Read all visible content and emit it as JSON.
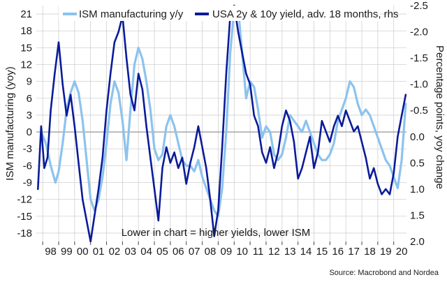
{
  "chart_data": {
    "type": "line",
    "grid": true,
    "legend_position": "top",
    "annotation": "Lower in chart = higher yields, lower ISM",
    "source": "Source: Macrobond and Nordea",
    "colors": {
      "ism": "#8cc3ee",
      "yield": "#0a1b9a",
      "zero": "#8a8a8a",
      "grid": "#d0d0d0"
    },
    "x": {
      "ticks": [
        "98",
        "99",
        "00",
        "01",
        "02",
        "03",
        "04",
        "05",
        "06",
        "07",
        "08",
        "09",
        "10",
        "11",
        "12",
        "13",
        "14",
        "15",
        "16",
        "17",
        "18",
        "19",
        "20"
      ],
      "range": [
        1997.6,
        2020.8
      ]
    },
    "y_left": {
      "label": "ISM manufacturing (yoy)",
      "range": [
        -19.5,
        22.5
      ],
      "ticks": [
        21,
        18,
        15,
        12,
        9,
        6,
        3,
        0,
        -3,
        -6,
        -9,
        -12,
        -15,
        -18
      ]
    },
    "y_right": {
      "label": "Percentage points, yoy change",
      "inverted": true,
      "range": [
        2.0,
        -2.5
      ],
      "ticks": [
        "-2.5",
        "-2.0",
        "-1.5",
        "-1.0",
        "-0.5",
        "0.0",
        "0.5",
        "1.0",
        "1.5",
        "2.0"
      ]
    },
    "series": [
      {
        "name": "ISM manufacturing y/y",
        "axis": "left",
        "x": [
          1997.9,
          1998.2,
          1998.5,
          1998.8,
          1999.0,
          1999.25,
          1999.5,
          1999.75,
          2000.0,
          2000.25,
          2000.5,
          2000.75,
          2001.0,
          2001.25,
          2001.5,
          2001.75,
          2002.0,
          2002.25,
          2002.5,
          2002.75,
          2003.0,
          2003.25,
          2003.5,
          2003.75,
          2004.0,
          2004.25,
          2004.5,
          2004.75,
          2005.0,
          2005.25,
          2005.5,
          2005.75,
          2006.0,
          2006.25,
          2006.5,
          2006.75,
          2007.0,
          2007.25,
          2007.5,
          2007.75,
          2008.0,
          2008.25,
          2008.5,
          2008.75,
          2009.0,
          2009.25,
          2009.5,
          2009.75,
          2010.0,
          2010.25,
          2010.5,
          2010.75,
          2011.0,
          2011.25,
          2011.5,
          2011.75,
          2012.0,
          2012.25,
          2012.5,
          2012.75,
          2013.0,
          2013.25,
          2013.5,
          2013.75,
          2014.0,
          2014.25,
          2014.5,
          2014.75,
          2015.0,
          2015.25,
          2015.5,
          2015.75,
          2016.0,
          2016.25,
          2016.5,
          2016.75,
          2017.0,
          2017.25,
          2017.5,
          2017.75,
          2018.0,
          2018.25,
          2018.5,
          2018.75,
          2019.0,
          2019.25,
          2019.5,
          2019.75,
          2020.0,
          2020.25,
          2020.5,
          2020.75
        ],
        "values": [
          0,
          -2,
          -6,
          -9,
          -7,
          -2,
          4,
          7,
          9,
          7,
          2,
          -5,
          -12,
          -14,
          -12,
          -8,
          -2,
          5,
          9,
          7,
          2,
          -5,
          4,
          12,
          15,
          13,
          9,
          4,
          -3,
          -5,
          -4,
          1,
          3,
          1,
          -2,
          -5,
          -6,
          -6,
          -7,
          -5,
          -8,
          -10,
          -12,
          -14,
          -15,
          -10,
          0,
          14,
          22,
          22,
          14,
          6,
          9,
          8,
          4,
          -1,
          1,
          0,
          -4,
          -5,
          -4,
          -1,
          3,
          2,
          1,
          0,
          2,
          0,
          -2,
          -4,
          -5,
          -5,
          -4,
          -2,
          2,
          4,
          6,
          9,
          8,
          5,
          3,
          4,
          3,
          1,
          -1,
          -3,
          -5,
          -6,
          -8,
          -10,
          -5,
          5
        ]
      },
      {
        "name": "USA 2y & 10y yield, adv. 18 months, rhs",
        "axis": "right",
        "x": [
          1997.7,
          1997.9,
          1998.1,
          1998.3,
          1998.5,
          1998.75,
          1999.0,
          1999.25,
          1999.5,
          1999.75,
          2000.0,
          2000.25,
          2000.5,
          2000.75,
          2001.0,
          2001.25,
          2001.5,
          2001.75,
          2002.0,
          2002.25,
          2002.5,
          2002.75,
          2003.0,
          2003.25,
          2003.5,
          2003.75,
          2004.0,
          2004.25,
          2004.5,
          2004.75,
          2005.0,
          2005.25,
          2005.5,
          2005.75,
          2006.0,
          2006.25,
          2006.5,
          2006.75,
          2007.0,
          2007.25,
          2007.5,
          2007.75,
          2008.0,
          2008.25,
          2008.5,
          2008.75,
          2009.0,
          2009.25,
          2009.5,
          2009.75,
          2010.0,
          2010.25,
          2010.5,
          2010.75,
          2011.0,
          2011.25,
          2011.5,
          2011.75,
          2012.0,
          2012.25,
          2012.5,
          2012.75,
          2013.0,
          2013.25,
          2013.5,
          2013.75,
          2014.0,
          2014.25,
          2014.5,
          2014.75,
          2015.0,
          2015.25,
          2015.5,
          2015.75,
          2016.0,
          2016.25,
          2016.5,
          2016.75,
          2017.0,
          2017.25,
          2017.5,
          2017.75,
          2018.0,
          2018.25,
          2018.5,
          2018.75,
          2019.0,
          2019.25,
          2019.5,
          2019.75,
          2020.0,
          2020.25,
          2020.5,
          2020.75
        ],
        "values": [
          1.0,
          -0.2,
          0.6,
          0.4,
          -0.5,
          -1.2,
          -1.8,
          -1.0,
          -0.4,
          -0.8,
          -0.2,
          0.5,
          1.2,
          1.6,
          2.0,
          1.5,
          1.0,
          0.4,
          -0.5,
          -1.2,
          -1.8,
          -2.0,
          -2.3,
          -1.5,
          -0.8,
          -0.5,
          -1.2,
          -0.9,
          -0.2,
          0.4,
          1.0,
          1.6,
          0.6,
          0.2,
          0.5,
          0.3,
          0.6,
          0.4,
          0.9,
          0.5,
          0.2,
          -0.2,
          0.2,
          0.6,
          1.2,
          1.9,
          1.4,
          0.2,
          -1.2,
          -2.3,
          -2.5,
          -2.0,
          -1.6,
          -1.2,
          -1.0,
          -0.4,
          -0.2,
          0.3,
          0.5,
          0.2,
          0.6,
          0.3,
          -0.2,
          -0.5,
          -0.3,
          0.1,
          0.8,
          0.6,
          0.3,
          0.0,
          0.6,
          0.3,
          -0.3,
          -0.1,
          0.1,
          -0.2,
          -0.4,
          -0.2,
          -0.5,
          -0.3,
          -0.1,
          -0.2,
          0.1,
          0.4,
          0.8,
          0.6,
          0.9,
          1.1,
          1.0,
          1.1,
          0.7,
          0.0,
          -0.4,
          -0.8
        ]
      }
    ]
  }
}
